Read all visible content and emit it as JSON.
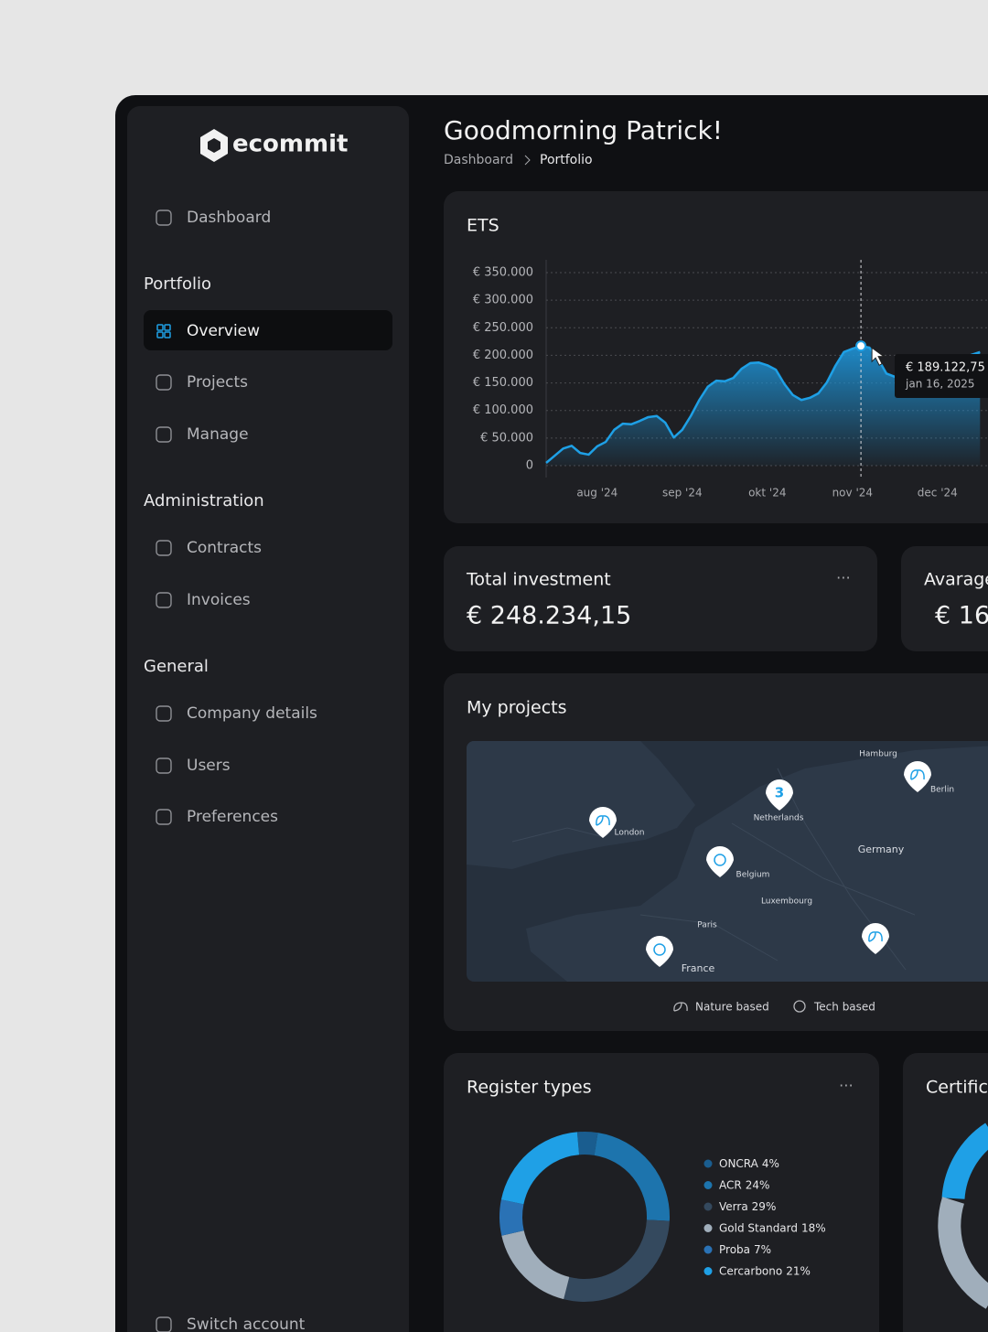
{
  "brand": "ecommit",
  "sidebar": {
    "top": "Dashboard",
    "sections": [
      {
        "title": "Portfolio",
        "items": [
          "Overview",
          "Projects",
          "Manage"
        ]
      },
      {
        "title": "Administration",
        "items": [
          "Contracts",
          "Invoices"
        ]
      },
      {
        "title": "General",
        "items": [
          "Company details",
          "Users",
          "Preferences"
        ]
      }
    ],
    "footer": "Switch account"
  },
  "header": {
    "title": "Goodmorning Patrick!",
    "breadcrumb": [
      "Dashboard",
      "Portfolio"
    ]
  },
  "cards": [
    {
      "title": "Total investment",
      "value": "€ 248.234,15"
    },
    {
      "title": "Avarage",
      "value": "€ 16"
    }
  ],
  "map": {
    "title": "My projects",
    "labels": [
      "London",
      "Netherlands",
      "Belgium",
      "Germany",
      "France",
      "Paris",
      "Berlin",
      "Luxembourg",
      "Hamburg"
    ],
    "cluster": "3",
    "legend": [
      "Nature based",
      "Tech based"
    ]
  },
  "certificates_title": "Certific",
  "chart_data": [
    {
      "type": "line",
      "title": "ETS",
      "categories": [
        null,
        null,
        null,
        null,
        null,
        null,
        "aug '24",
        null,
        null,
        null,
        null,
        null,
        null,
        null,
        null,
        null,
        "sep '24",
        null,
        null,
        null,
        null,
        null,
        null,
        null,
        null,
        null,
        "okt '24",
        null,
        null,
        null,
        null,
        null,
        null,
        null,
        null,
        null,
        "nov '24",
        null,
        null,
        null,
        null,
        null,
        null,
        null,
        null,
        null,
        "dec '24",
        null,
        null,
        null,
        null,
        null
      ],
      "series": [
        {
          "name": "ETS",
          "color": "#1ea0e6",
          "values": [
            5000,
            18000,
            31000,
            36000,
            23000,
            20000,
            35000,
            43000,
            65000,
            76000,
            75000,
            81000,
            88000,
            90000,
            78000,
            51000,
            65000,
            90000,
            119000,
            143000,
            154000,
            153000,
            159000,
            176000,
            186000,
            187000,
            182000,
            174000,
            148000,
            128000,
            119000,
            123000,
            131000,
            151000,
            181000,
            206000,
            212000,
            217000,
            214000,
            194000,
            167000,
            161000,
            172000,
            181000,
            189000,
            184000,
            177000,
            186000,
            197000,
            194000,
            201000,
            206000
          ]
        }
      ],
      "ylim": [
        0,
        350000
      ],
      "yticks": [
        {
          "value": 0,
          "label": "0"
        },
        {
          "value": 50000,
          "label": "€ 50.000"
        },
        {
          "value": 100000,
          "label": "€ 100.000"
        },
        {
          "value": 150000,
          "label": "€ 150.000"
        },
        {
          "value": 200000,
          "label": "€ 200.000"
        },
        {
          "value": 250000,
          "label": "€ 250.000"
        },
        {
          "value": 300000,
          "label": "€ 300.000"
        },
        {
          "value": 350000,
          "label": "€ 350.000"
        }
      ],
      "grid": true,
      "annotations": [
        "€ 189.122,75",
        "jan 16, 2025"
      ]
    },
    {
      "type": "pie",
      "title": "Register types",
      "categories": [
        "ONCRA",
        "ACR",
        "Verra",
        "Gold Standard",
        "Proba",
        "Cercarbono"
      ],
      "values": [
        4,
        24,
        29,
        18,
        7,
        21
      ],
      "value_labels": [
        "4%",
        "24%",
        "29%",
        "18%",
        "7%",
        "21%"
      ],
      "colors": [
        "#1a5d8f",
        "#1d74ad",
        "#34495e",
        "#a0aebb",
        "#2a72b5",
        "#1fa0e6"
      ]
    }
  ]
}
